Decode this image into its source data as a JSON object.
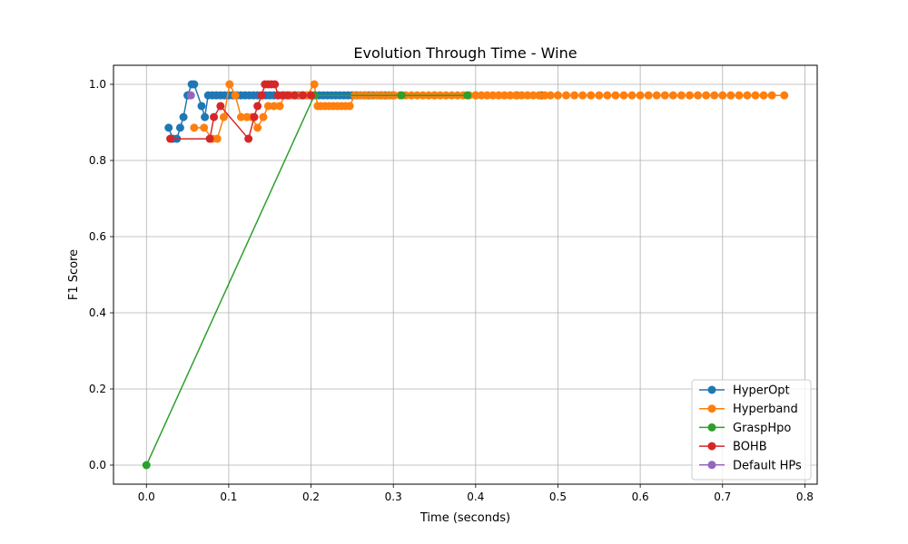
{
  "chart_data": {
    "type": "line",
    "title": "Evolution Through Time - Wine",
    "xlabel": "Time (seconds)",
    "ylabel": "F1 Score",
    "xlim": [
      -0.04,
      0.815
    ],
    "ylim": [
      -0.05,
      1.05
    ],
    "xticks": [
      0.0,
      0.1,
      0.2,
      0.3,
      0.4,
      0.5,
      0.6,
      0.7,
      0.8
    ],
    "yticks": [
      0.0,
      0.2,
      0.4,
      0.6,
      0.8,
      1.0
    ],
    "xtick_labels": [
      "0.0",
      "0.1",
      "0.2",
      "0.3",
      "0.4",
      "0.5",
      "0.6",
      "0.7",
      "0.8"
    ],
    "ytick_labels": [
      "0.0",
      "0.2",
      "0.4",
      "0.6",
      "0.8",
      "1.0"
    ],
    "grid": true,
    "legend_position": "lower-right",
    "series": [
      {
        "name": "HyperOpt",
        "color": "#1f77b4",
        "x": [
          0.027,
          0.032,
          0.037,
          0.041,
          0.045,
          0.05,
          0.055,
          0.058,
          0.067,
          0.071,
          0.075,
          0.08,
          0.085,
          0.09,
          0.095,
          0.1,
          0.105,
          0.11,
          0.115,
          0.12,
          0.125,
          0.13,
          0.135,
          0.14,
          0.145,
          0.15,
          0.155,
          0.16,
          0.165,
          0.17,
          0.175,
          0.18,
          0.185,
          0.19,
          0.195,
          0.2,
          0.205,
          0.21,
          0.215,
          0.22,
          0.225,
          0.23,
          0.235,
          0.24,
          0.245,
          0.25,
          0.255,
          0.26,
          0.265,
          0.27,
          0.275,
          0.28,
          0.285,
          0.29,
          0.295,
          0.3,
          0.35,
          0.4,
          0.45,
          0.48
        ],
        "y": [
          0.886,
          0.857,
          0.857,
          0.886,
          0.914,
          0.971,
          1.0,
          1.0,
          0.943,
          0.914,
          0.971,
          0.971,
          0.971,
          0.971,
          0.971,
          0.971,
          0.971,
          0.971,
          0.971,
          0.971,
          0.971,
          0.971,
          0.971,
          0.971,
          0.971,
          0.971,
          0.971,
          0.971,
          0.971,
          0.971,
          0.971,
          0.971,
          0.971,
          0.971,
          0.971,
          0.971,
          0.971,
          0.971,
          0.971,
          0.971,
          0.971,
          0.971,
          0.971,
          0.971,
          0.971,
          0.971,
          0.971,
          0.971,
          0.971,
          0.971,
          0.971,
          0.971,
          0.971,
          0.971,
          0.971,
          0.971,
          0.971,
          0.971,
          0.971,
          0.971
        ]
      },
      {
        "name": "Hyperband",
        "color": "#ff7f0e",
        "x": [
          0.058,
          0.07,
          0.08,
          0.086,
          0.094,
          0.101,
          0.108,
          0.115,
          0.122,
          0.128,
          0.135,
          0.142,
          0.148,
          0.155,
          0.162,
          0.168,
          0.175,
          0.181,
          0.188,
          0.195,
          0.204,
          0.208,
          0.212,
          0.217,
          0.222,
          0.227,
          0.232,
          0.237,
          0.242,
          0.247,
          0.253,
          0.26,
          0.266,
          0.273,
          0.28,
          0.287,
          0.294,
          0.301,
          0.308,
          0.315,
          0.322,
          0.329,
          0.336,
          0.343,
          0.35,
          0.357,
          0.364,
          0.371,
          0.378,
          0.385,
          0.392,
          0.4,
          0.407,
          0.414,
          0.421,
          0.428,
          0.435,
          0.442,
          0.449,
          0.456,
          0.463,
          0.47,
          0.477,
          0.484,
          0.491,
          0.5,
          0.51,
          0.52,
          0.53,
          0.54,
          0.55,
          0.56,
          0.57,
          0.58,
          0.59,
          0.6,
          0.61,
          0.62,
          0.63,
          0.64,
          0.65,
          0.66,
          0.67,
          0.68,
          0.69,
          0.7,
          0.71,
          0.72,
          0.73,
          0.74,
          0.75,
          0.76,
          0.775
        ],
        "y": [
          0.886,
          0.886,
          0.857,
          0.857,
          0.914,
          1.0,
          0.971,
          0.914,
          0.914,
          0.914,
          0.886,
          0.914,
          0.943,
          0.943,
          0.943,
          0.971,
          0.971,
          0.971,
          0.971,
          0.971,
          1.0,
          0.943,
          0.943,
          0.943,
          0.943,
          0.943,
          0.943,
          0.943,
          0.943,
          0.943,
          0.971,
          0.971,
          0.971,
          0.971,
          0.971,
          0.971,
          0.971,
          0.971,
          0.971,
          0.971,
          0.971,
          0.971,
          0.971,
          0.971,
          0.971,
          0.971,
          0.971,
          0.971,
          0.971,
          0.971,
          0.971,
          0.971,
          0.971,
          0.971,
          0.971,
          0.971,
          0.971,
          0.971,
          0.971,
          0.971,
          0.971,
          0.971,
          0.971,
          0.971,
          0.971,
          0.971,
          0.971,
          0.971,
          0.971,
          0.971,
          0.971,
          0.971,
          0.971,
          0.971,
          0.971,
          0.971,
          0.971,
          0.971,
          0.971,
          0.971,
          0.971,
          0.971,
          0.971,
          0.971,
          0.971,
          0.971,
          0.971,
          0.971,
          0.971,
          0.971,
          0.971,
          0.971,
          0.971
        ]
      },
      {
        "name": "GraspHpo",
        "color": "#2ca02c",
        "x": [
          0.0,
          0.204,
          0.31,
          0.39
        ],
        "y": [
          0.0,
          0.971,
          0.971,
          0.971
        ]
      },
      {
        "name": "BOHB",
        "color": "#d62728",
        "x": [
          0.029,
          0.077,
          0.082,
          0.09,
          0.124,
          0.131,
          0.135,
          0.14,
          0.144,
          0.148,
          0.152,
          0.156,
          0.16,
          0.166,
          0.172,
          0.18,
          0.19,
          0.2
        ],
        "y": [
          0.857,
          0.857,
          0.914,
          0.943,
          0.857,
          0.914,
          0.943,
          0.971,
          1.0,
          1.0,
          1.0,
          1.0,
          0.971,
          0.971,
          0.971,
          0.971,
          0.971,
          0.971
        ]
      },
      {
        "name": "Default HPs",
        "color": "#9467bd",
        "x": [
          0.054
        ],
        "y": [
          0.971
        ]
      }
    ]
  }
}
